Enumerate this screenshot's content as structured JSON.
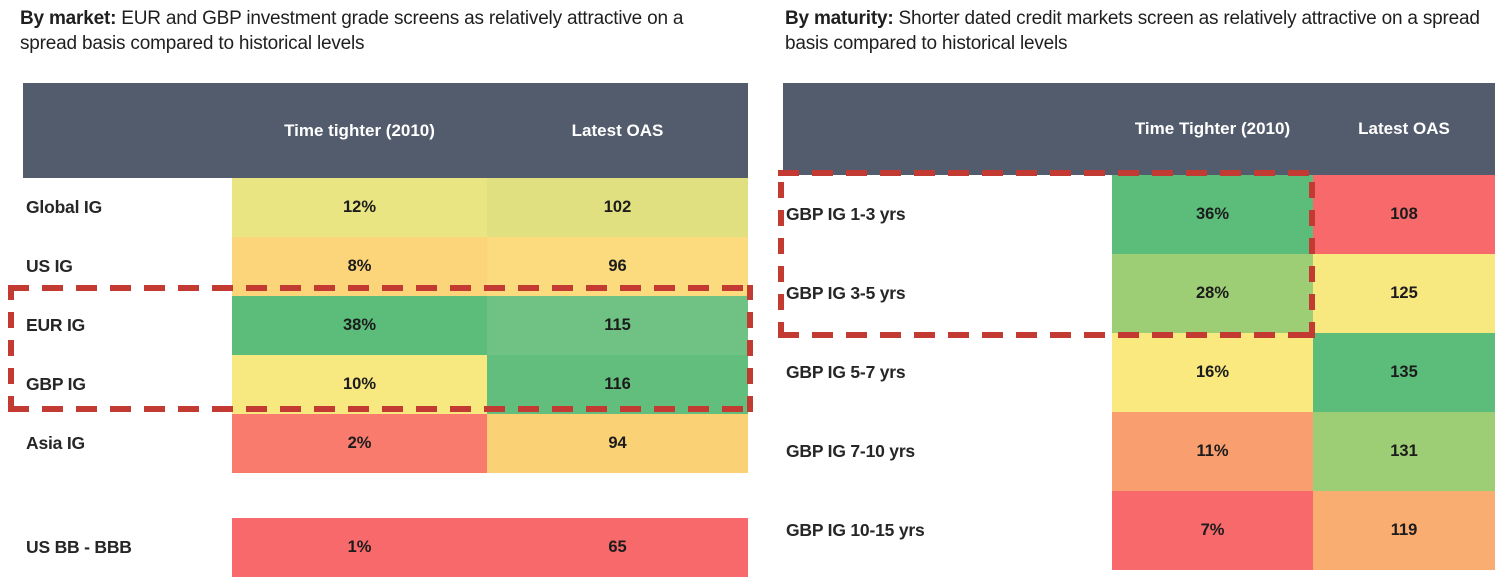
{
  "annotation": {
    "dash_color": "#C23A31",
    "header_bg": "#535C6D",
    "header_text_color": "#FFFFFF"
  },
  "panels": {
    "left": {
      "title_lead": "By market:",
      "title_rest": " EUR and GBP investment grade screens as relatively attractive on a spread basis compared to historical levels",
      "header": {
        "col1": "Time tighter (2010)",
        "col2": "Latest OAS"
      },
      "rows": [
        {
          "label": "Global IG",
          "tt": "12%",
          "tt_color": "#E9E582",
          "oas": "102",
          "oas_color": "#E0E081"
        },
        {
          "label": "US IG",
          "tt": "8%",
          "tt_color": "#FCD57B",
          "oas": "96",
          "oas_color": "#FBDB7E"
        },
        {
          "label": "EUR IG",
          "tt": "38%",
          "tt_color": "#5CBD7A",
          "oas": "115",
          "oas_color": "#6FC184"
        },
        {
          "label": "GBP IG",
          "tt": "10%",
          "tt_color": "#F8E880",
          "oas": "116",
          "oas_color": "#62BE7C"
        },
        {
          "label": "Asia IG",
          "tt": "2%",
          "tt_color": "#F87B6E",
          "oas": "94",
          "oas_color": "#FAD275"
        },
        {
          "label": "US BB - BBB",
          "tt": "1%",
          "tt_color": "#F8696B",
          "oas": "65",
          "oas_color": "#F8696B"
        }
      ],
      "highlighted_rows": "EUR IG, GBP IG"
    },
    "right": {
      "title_lead": "By maturity:",
      "title_rest": " Shorter dated credit markets screen as relatively attractive on a spread basis compared to historical levels",
      "header": {
        "col1": "Time Tighter (2010)",
        "col2": "Latest OAS"
      },
      "rows": [
        {
          "label": "GBP IG 1-3 yrs",
          "tt": "36%",
          "tt_color": "#5CBD7A",
          "oas": "108",
          "oas_color": "#F8696B"
        },
        {
          "label": "GBP IG 3-5 yrs",
          "tt": "28%",
          "tt_color": "#9DCD74",
          "oas": "125",
          "oas_color": "#F8E880"
        },
        {
          "label": "GBP IG 5-7 yrs",
          "tt": "16%",
          "tt_color": "#F9E97F",
          "oas": "135",
          "oas_color": "#5CBD7A"
        },
        {
          "label": "GBP IG 7-10 yrs",
          "tt": "11%",
          "tt_color": "#F99E6F",
          "oas": "131",
          "oas_color": "#9DCD74"
        },
        {
          "label": "GBP IG 10-15 yrs",
          "tt": "7%",
          "tt_color": "#F8696B",
          "oas": "119",
          "oas_color": "#FAAD70"
        }
      ],
      "highlighted_rows": "GBP IG 1-3 yrs, GBP IG 3-5 yrs"
    }
  },
  "chart_data": [
    {
      "type": "table",
      "title": "By market: EUR and GBP investment grade screens as relatively attractive on a spread basis compared to historical levels",
      "columns": [
        "",
        "Time tighter (2010)",
        "Latest OAS"
      ],
      "rows": [
        [
          "Global IG",
          "12%",
          102
        ],
        [
          "US IG",
          "8%",
          96
        ],
        [
          "EUR IG",
          "38%",
          115
        ],
        [
          "GBP IG",
          "10%",
          116
        ],
        [
          "Asia IG",
          "2%",
          94
        ],
        [
          "US BB - BBB",
          "1%",
          65
        ]
      ],
      "highlighted_rows": [
        "EUR IG",
        "GBP IG"
      ],
      "color_scale": "heatmap red (#F8696B) to yellow (#F8E880) to green (#5CBD7A)"
    },
    {
      "type": "table",
      "title": "By maturity: Shorter dated credit markets screen as relatively attractive on a spread basis compared to historical levels",
      "columns": [
        "",
        "Time Tighter (2010)",
        "Latest OAS"
      ],
      "rows": [
        [
          "GBP IG 1-3 yrs",
          "36%",
          108
        ],
        [
          "GBP IG 3-5 yrs",
          "28%",
          125
        ],
        [
          "GBP IG 5-7 yrs",
          "16%",
          135
        ],
        [
          "GBP IG 7-10 yrs",
          "11%",
          131
        ],
        [
          "GBP IG 10-15 yrs",
          "7%",
          119
        ]
      ],
      "highlighted_rows": [
        "GBP IG 1-3 yrs",
        "GBP IG 3-5 yrs"
      ],
      "color_scale": "heatmap red (#F8696B) to yellow (#F8E880) to green (#5CBD7A)"
    }
  ]
}
